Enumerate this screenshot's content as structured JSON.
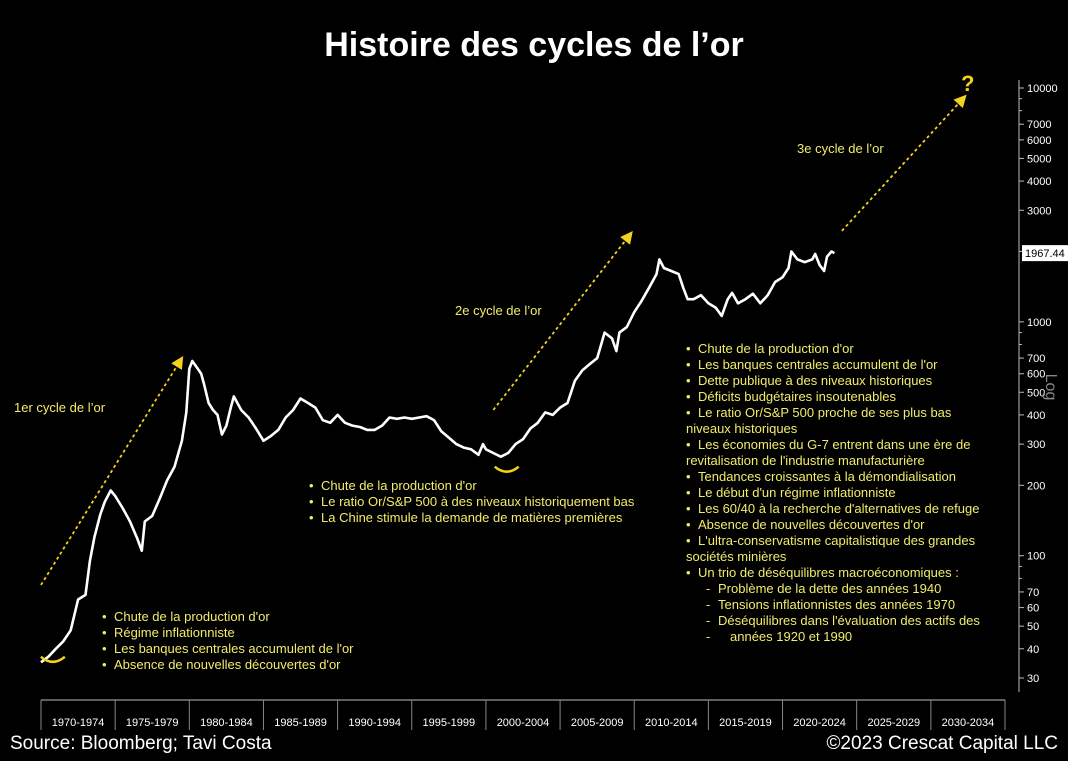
{
  "page": {
    "title": "Histoire des cycles de l’or",
    "source": "Source: Bloomberg; Tavi Costa",
    "copyright": "©2023 Crescat Capital LLC"
  },
  "chart_data": {
    "type": "line",
    "title": "Histoire des cycles de l’or",
    "x_categories": [
      "1970-1974",
      "1975-1979",
      "1980-1984",
      "1985-1989",
      "1990-1994",
      "1995-1999",
      "2000-2004",
      "2005-2009",
      "2010-2014",
      "2015-2019",
      "2020-2024",
      "2025-2029",
      "2030-2034"
    ],
    "x_range": [
      1970,
      2035
    ],
    "y_scale": "log",
    "y_axis_label": "Log",
    "y_range": [
      26,
      11000
    ],
    "y_ticks": [
      {
        "value": 30,
        "label": "30"
      },
      {
        "value": 40,
        "label": "40"
      },
      {
        "value": 50,
        "label": "50"
      },
      {
        "value": 60,
        "label": "60"
      },
      {
        "value": 70,
        "label": "70"
      },
      {
        "value": 100,
        "label": "100"
      },
      {
        "value": 200,
        "label": "200"
      },
      {
        "value": 300,
        "label": "300"
      },
      {
        "value": 400,
        "label": "400"
      },
      {
        "value": 500,
        "label": "500"
      },
      {
        "value": 600,
        "label": "600"
      },
      {
        "value": 700,
        "label": "700"
      },
      {
        "value": 1000,
        "label": "1000"
      },
      {
        "value": 2000,
        "label": "2000"
      },
      {
        "value": 3000,
        "label": "3000"
      },
      {
        "value": 4000,
        "label": "4000"
      },
      {
        "value": 5000,
        "label": "5000"
      },
      {
        "value": 6000,
        "label": "6000"
      },
      {
        "value": 7000,
        "label": "7000"
      },
      {
        "value": 10000,
        "label": "10000"
      }
    ],
    "last_value_label": "1967.44",
    "last_value": 1967.44,
    "series": [
      {
        "color": "#ffffff",
        "points": [
          [
            1970.0,
            35
          ],
          [
            1970.5,
            37
          ],
          [
            1971.0,
            40
          ],
          [
            1971.5,
            43
          ],
          [
            1972.0,
            48
          ],
          [
            1972.5,
            65
          ],
          [
            1973.0,
            68
          ],
          [
            1973.3,
            95
          ],
          [
            1973.6,
            120
          ],
          [
            1974.0,
            150
          ],
          [
            1974.3,
            170
          ],
          [
            1974.7,
            190
          ],
          [
            1975.0,
            180
          ],
          [
            1975.5,
            160
          ],
          [
            1976.0,
            140
          ],
          [
            1976.5,
            118
          ],
          [
            1976.8,
            105
          ],
          [
            1977.0,
            140
          ],
          [
            1977.5,
            148
          ],
          [
            1978.0,
            175
          ],
          [
            1978.5,
            210
          ],
          [
            1979.0,
            240
          ],
          [
            1979.5,
            310
          ],
          [
            1979.8,
            410
          ],
          [
            1980.0,
            630
          ],
          [
            1980.2,
            680
          ],
          [
            1980.5,
            640
          ],
          [
            1980.8,
            600
          ],
          [
            1981.0,
            540
          ],
          [
            1981.3,
            450
          ],
          [
            1981.6,
            420
          ],
          [
            1981.9,
            400
          ],
          [
            1982.2,
            330
          ],
          [
            1982.5,
            360
          ],
          [
            1982.8,
            430
          ],
          [
            1983.0,
            480
          ],
          [
            1983.5,
            420
          ],
          [
            1984.0,
            390
          ],
          [
            1984.5,
            350
          ],
          [
            1985.0,
            310
          ],
          [
            1985.5,
            325
          ],
          [
            1986.0,
            345
          ],
          [
            1986.5,
            390
          ],
          [
            1987.0,
            420
          ],
          [
            1987.5,
            470
          ],
          [
            1988.0,
            450
          ],
          [
            1988.5,
            430
          ],
          [
            1989.0,
            380
          ],
          [
            1989.5,
            370
          ],
          [
            1990.0,
            400
          ],
          [
            1990.5,
            370
          ],
          [
            1991.0,
            360
          ],
          [
            1991.5,
            355
          ],
          [
            1992.0,
            345
          ],
          [
            1992.5,
            345
          ],
          [
            1993.0,
            360
          ],
          [
            1993.5,
            390
          ],
          [
            1994.0,
            385
          ],
          [
            1994.5,
            390
          ],
          [
            1995.0,
            385
          ],
          [
            1995.5,
            390
          ],
          [
            1996.0,
            395
          ],
          [
            1996.5,
            380
          ],
          [
            1997.0,
            340
          ],
          [
            1997.5,
            320
          ],
          [
            1998.0,
            300
          ],
          [
            1998.5,
            290
          ],
          [
            1999.0,
            285
          ],
          [
            1999.5,
            270
          ],
          [
            1999.8,
            300
          ],
          [
            2000.0,
            285
          ],
          [
            2000.5,
            275
          ],
          [
            2001.0,
            265
          ],
          [
            2001.5,
            275
          ],
          [
            2002.0,
            300
          ],
          [
            2002.5,
            315
          ],
          [
            2003.0,
            350
          ],
          [
            2003.5,
            370
          ],
          [
            2004.0,
            410
          ],
          [
            2004.5,
            400
          ],
          [
            2005.0,
            430
          ],
          [
            2005.5,
            450
          ],
          [
            2006.0,
            560
          ],
          [
            2006.5,
            620
          ],
          [
            2007.0,
            660
          ],
          [
            2007.5,
            700
          ],
          [
            2008.0,
            900
          ],
          [
            2008.5,
            850
          ],
          [
            2008.8,
            750
          ],
          [
            2009.0,
            900
          ],
          [
            2009.5,
            950
          ],
          [
            2010.0,
            1100
          ],
          [
            2010.5,
            1230
          ],
          [
            2011.0,
            1400
          ],
          [
            2011.5,
            1600
          ],
          [
            2011.7,
            1850
          ],
          [
            2012.0,
            1700
          ],
          [
            2012.5,
            1650
          ],
          [
            2013.0,
            1600
          ],
          [
            2013.3,
            1400
          ],
          [
            2013.6,
            1250
          ],
          [
            2014.0,
            1250
          ],
          [
            2014.5,
            1300
          ],
          [
            2015.0,
            1200
          ],
          [
            2015.5,
            1150
          ],
          [
            2015.9,
            1060
          ],
          [
            2016.3,
            1250
          ],
          [
            2016.6,
            1330
          ],
          [
            2017.0,
            1200
          ],
          [
            2017.5,
            1250
          ],
          [
            2018.0,
            1320
          ],
          [
            2018.5,
            1200
          ],
          [
            2019.0,
            1300
          ],
          [
            2019.5,
            1480
          ],
          [
            2020.0,
            1550
          ],
          [
            2020.4,
            1700
          ],
          [
            2020.6,
            2000
          ],
          [
            2021.0,
            1850
          ],
          [
            2021.5,
            1800
          ],
          [
            2022.0,
            1850
          ],
          [
            2022.2,
            1950
          ],
          [
            2022.5,
            1750
          ],
          [
            2022.8,
            1650
          ],
          [
            2023.0,
            1900
          ],
          [
            2023.3,
            2000
          ],
          [
            2023.5,
            1967.44
          ]
        ]
      }
    ],
    "cycle_arrows": [
      {
        "label": "1er cycle de l’or",
        "from": [
          1970.0,
          75
        ],
        "to": [
          1979.5,
          700
        ]
      },
      {
        "label": "2e cycle de l’or",
        "from": [
          2000.5,
          420
        ],
        "to": [
          2009.8,
          2400
        ]
      },
      {
        "label": "3e cycle de l’or",
        "from": [
          2024.0,
          2450
        ],
        "to": [
          2032.3,
          9200
        ]
      }
    ],
    "question_mark": "?"
  },
  "cycles": {
    "first_label": "1er cycle de l’or",
    "second_label": "2e cycle de l’or",
    "third_label": "3e cycle de l’or",
    "question": "?"
  },
  "notes": {
    "cycle1": [
      "Chute de la production d'or",
      "Régime inflationniste",
      "Les banques centrales accumulent de l'or",
      "Absence de nouvelles découvertes d'or"
    ],
    "cycle2": [
      "Chute de la production d'or",
      "Le ratio Or/S&P 500 à des niveaux historiquement bas",
      "La Chine stimule la demande de matières premières"
    ],
    "cycle3": {
      "b1": "Chute de la production d'or",
      "b2": "Les banques centrales accumulent de l'or",
      "b3": "Dette publique à des niveaux historiques",
      "b4": "Déficits budgétaires insoutenables",
      "b5a": "Le ratio Or/S&P 500 proche de ses plus bas",
      "b5b": "niveaux historiques",
      "b6a": "Les économies du G-7 entrent dans une ère de",
      "b6b": "revitalisation de l'industrie manufacturière",
      "b7": "Tendances croissantes à la démondialisation",
      "b8": "Le début d'un régime inflationniste",
      "b9": "Les 60/40 à la recherche d'alternatives de refuge",
      "b10": "Absence de nouvelles découvertes d'or",
      "b11a": "L'ultra-conservatisme capitalistique des grandes",
      "b11b": "sociétés minières",
      "b12": "Un trio de déséquilibres macroéconomiques :",
      "s1": "Problème de la dette des années 1940",
      "s2": "Tensions inflationnistes des années 1970",
      "s3a": "Déséquilibres dans l'évaluation des actifs des",
      "s3b": "années 1920 et 1990"
    }
  },
  "colors": {
    "background": "#000000",
    "line": "#ffffff",
    "annotation": "#f2ec6a",
    "arrow": "#f2d21c",
    "axis": "#bbbbbb"
  }
}
